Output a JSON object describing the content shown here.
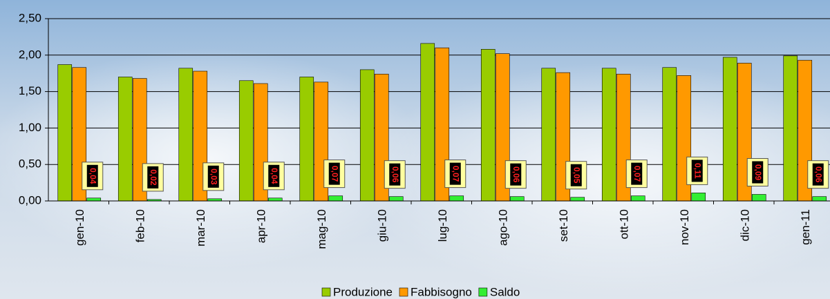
{
  "chart_data": {
    "type": "bar",
    "categories": [
      "gen-10",
      "feb-10",
      "mar-10",
      "apr-10",
      "mag-10",
      "giu-10",
      "lug-10",
      "ago-10",
      "set-10",
      "ott-10",
      "nov-10",
      "dic-10",
      "gen-11"
    ],
    "series": [
      {
        "name": "Produzione",
        "color": "#99cc00",
        "values": [
          1.87,
          1.7,
          1.82,
          1.65,
          1.7,
          1.8,
          2.16,
          2.08,
          1.82,
          1.82,
          1.83,
          1.97,
          1.99
        ]
      },
      {
        "name": "Fabbisogno",
        "color": "#ff9900",
        "values": [
          1.83,
          1.68,
          1.78,
          1.61,
          1.63,
          1.74,
          2.1,
          2.02,
          1.76,
          1.74,
          1.72,
          1.89,
          1.93
        ]
      },
      {
        "name": "Saldo",
        "color": "#33ee33",
        "values": [
          0.04,
          0.02,
          0.03,
          0.04,
          0.07,
          0.06,
          0.07,
          0.06,
          0.05,
          0.07,
          0.11,
          0.09,
          0.06
        ],
        "value_labels": [
          "0,04",
          "0,02",
          "0,03",
          "0,04",
          "0,07",
          "0,06",
          "0,07",
          "0,06",
          "0,05",
          "0,07",
          "0,11",
          "0,09",
          "0,06"
        ]
      }
    ],
    "ylim": [
      0,
      2.5
    ],
    "yticks": [
      {
        "value": 0,
        "label": "0,00"
      },
      {
        "value": 0.5,
        "label": "0,50"
      },
      {
        "value": 1,
        "label": "1,00"
      },
      {
        "value": 1.5,
        "label": "1,50"
      },
      {
        "value": 2,
        "label": "2,00"
      },
      {
        "value": 2.5,
        "label": "2,50"
      }
    ],
    "grid": true,
    "legend": "bottom"
  }
}
